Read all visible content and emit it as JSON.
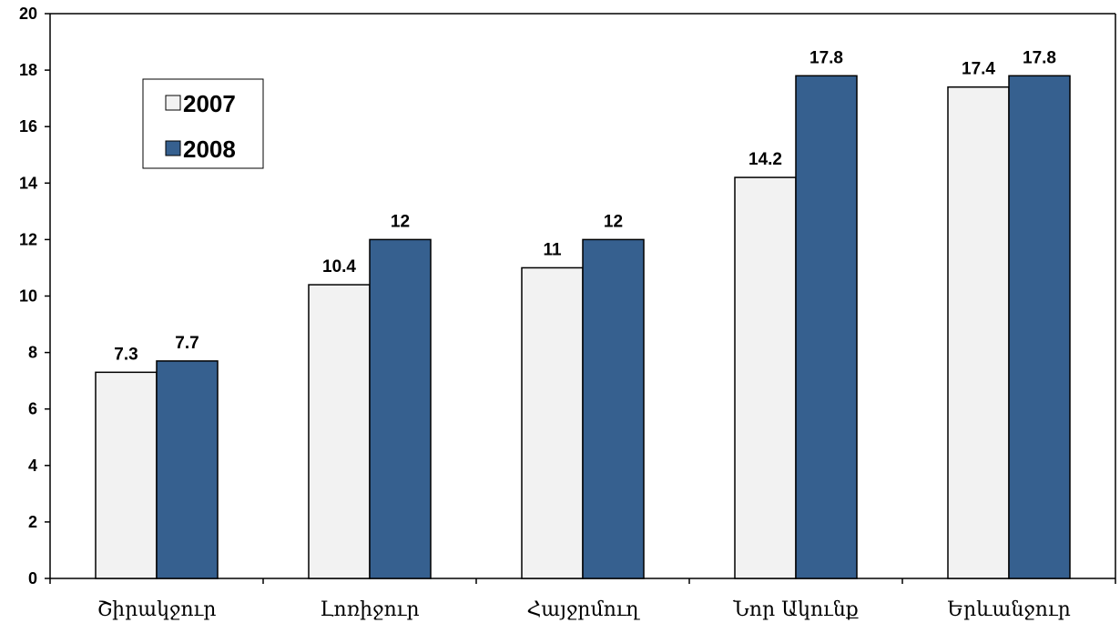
{
  "chart_data": {
    "type": "bar",
    "title": "",
    "xlabel": "",
    "ylabel": "",
    "categories": [
      "Շիրակջուր",
      "Լոռիջուր",
      "Հայջրմուղ",
      "Նոր Ակունք",
      "Երևանջուր"
    ],
    "series": [
      {
        "name": "2007",
        "values": [
          7.3,
          10.4,
          11,
          14.2,
          17.4
        ],
        "color": "#f2f2f2"
      },
      {
        "name": "2008",
        "values": [
          7.7,
          12,
          12,
          17.8,
          17.8
        ],
        "color": "#36608f"
      }
    ],
    "ylim": [
      0,
      20
    ],
    "yticks": [
      0,
      2,
      4,
      6,
      8,
      10,
      12,
      14,
      16,
      18,
      20
    ],
    "grid": false,
    "legend_position": "top-left",
    "data_labels": true
  }
}
